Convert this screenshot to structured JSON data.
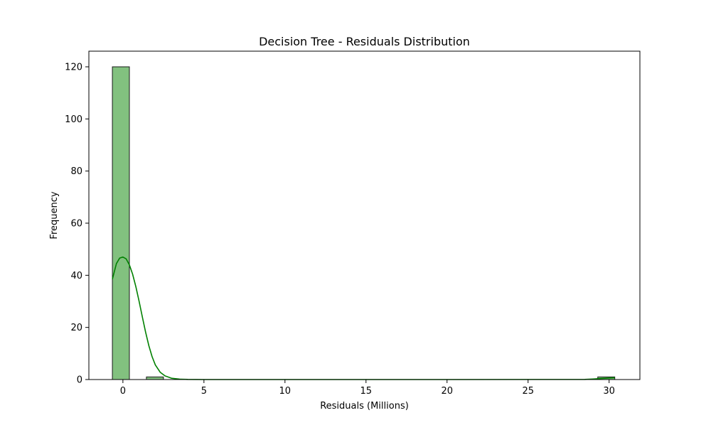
{
  "chart_data": {
    "type": "histogram",
    "title": "Decision Tree - Residuals Distribution",
    "xlabel": "Residuals (Millions)",
    "ylabel": "Frequency",
    "xlim": [
      -2.1,
      31.9
    ],
    "ylim": [
      0,
      126
    ],
    "x_ticks": [
      0,
      5,
      10,
      15,
      20,
      25,
      30
    ],
    "y_ticks": [
      0,
      20,
      40,
      60,
      80,
      100,
      120
    ],
    "grid": false,
    "bin_width": 1.05,
    "bins": [
      {
        "x0": -0.65,
        "x1": 0.4,
        "count": 120
      },
      {
        "x0": 1.45,
        "x1": 2.5,
        "count": 1
      },
      {
        "x0": 29.3,
        "x1": 30.35,
        "count": 1
      }
    ],
    "kde_curve": {
      "x": [
        -0.65,
        -0.4,
        -0.2,
        0.0,
        0.2,
        0.4,
        0.6,
        0.8,
        1.0,
        1.2,
        1.4,
        1.6,
        1.8,
        2.0,
        2.3,
        2.6,
        3.0,
        3.5,
        4.0,
        5.0,
        10.0,
        20.0,
        28.5,
        29.0,
        29.5,
        30.0,
        30.35
      ],
      "y": [
        38.5,
        44.5,
        46.6,
        47.0,
        46.3,
        44.0,
        40.4,
        35.6,
        30.0,
        24.0,
        18.2,
        13.0,
        8.8,
        5.6,
        2.8,
        1.4,
        0.5,
        0.15,
        0.05,
        0.0,
        0.0,
        0.0,
        0.05,
        0.2,
        0.4,
        0.6,
        0.7
      ]
    },
    "colors": {
      "bar_fill": "#82c17f",
      "bar_edge": "#1a1a1a",
      "kde_line": "#008000"
    }
  }
}
